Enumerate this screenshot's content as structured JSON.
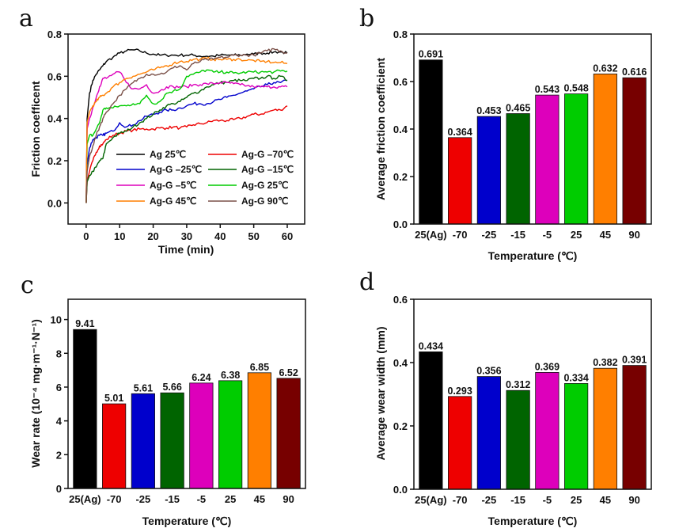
{
  "chart_data": [
    {
      "id": "a",
      "panel_label": "a",
      "type": "line",
      "title": "",
      "xlabel": "Time (min)",
      "ylabel": "Friction coefficent",
      "xlim": [
        -5.4,
        65.2
      ],
      "ylim": [
        -0.1,
        0.8
      ],
      "xticks": [
        0,
        10,
        20,
        30,
        40,
        50,
        60
      ],
      "yticks": [
        0.0,
        0.2,
        0.4,
        0.6,
        0.8
      ],
      "ytick_labels": [
        "0.0",
        "0.2",
        "0.4",
        "0.6",
        "0.8"
      ],
      "grid": false,
      "legend": {
        "placement": "bottom-right",
        "columns": 2
      },
      "x": [
        0,
        0.3,
        1,
        2,
        3,
        4,
        5,
        6,
        8,
        10,
        12,
        14,
        16,
        18,
        20,
        22,
        24,
        26,
        28,
        30,
        32,
        34,
        36,
        38,
        40,
        42,
        44,
        46,
        48,
        50,
        52,
        54,
        56,
        58,
        60
      ],
      "series": [
        {
          "name": "Ag 25℃",
          "color": "#000000",
          "values": [
            0.0,
            0.4,
            0.52,
            0.58,
            0.61,
            0.63,
            0.65,
            0.67,
            0.69,
            0.71,
            0.72,
            0.725,
            0.72,
            0.71,
            0.705,
            0.7,
            0.7,
            0.7,
            0.7,
            0.7,
            0.7,
            0.695,
            0.695,
            0.695,
            0.7,
            0.7,
            0.7,
            0.7,
            0.705,
            0.705,
            0.71,
            0.71,
            0.715,
            0.715,
            0.71
          ]
        },
        {
          "name": "Ag-G –70℃",
          "color": "#EE0000",
          "values": [
            0.0,
            0.1,
            0.15,
            0.2,
            0.24,
            0.27,
            0.28,
            0.3,
            0.32,
            0.33,
            0.34,
            0.345,
            0.35,
            0.35,
            0.35,
            0.355,
            0.355,
            0.36,
            0.355,
            0.36,
            0.37,
            0.375,
            0.38,
            0.39,
            0.39,
            0.39,
            0.395,
            0.4,
            0.41,
            0.42,
            0.42,
            0.43,
            0.44,
            0.44,
            0.46
          ]
        },
        {
          "name": "Ag-G –25℃",
          "color": "#0000CC",
          "values": [
            0.0,
            0.18,
            0.26,
            0.3,
            0.31,
            0.32,
            0.32,
            0.33,
            0.34,
            0.38,
            0.36,
            0.37,
            0.39,
            0.41,
            0.42,
            0.43,
            0.44,
            0.44,
            0.45,
            0.46,
            0.47,
            0.47,
            0.47,
            0.48,
            0.49,
            0.5,
            0.51,
            0.52,
            0.53,
            0.54,
            0.55,
            0.56,
            0.57,
            0.57,
            0.58
          ]
        },
        {
          "name": "Ag-G –15℃",
          "color": "#006400",
          "values": [
            0.0,
            0.1,
            0.13,
            0.15,
            0.17,
            0.2,
            0.21,
            0.28,
            0.31,
            0.33,
            0.34,
            0.36,
            0.38,
            0.4,
            0.42,
            0.44,
            0.46,
            0.47,
            0.48,
            0.5,
            0.52,
            0.53,
            0.55,
            0.56,
            0.57,
            0.57,
            0.58,
            0.58,
            0.58,
            0.59,
            0.59,
            0.6,
            0.59,
            0.6,
            0.58
          ]
        },
        {
          "name": "Ag-G –5℃",
          "color": "#DD00BB",
          "values": [
            0.0,
            0.35,
            0.4,
            0.45,
            0.5,
            0.55,
            0.59,
            0.59,
            0.61,
            0.62,
            0.57,
            0.54,
            0.54,
            0.56,
            0.52,
            0.53,
            0.55,
            0.55,
            0.55,
            0.55,
            0.56,
            0.56,
            0.565,
            0.565,
            0.57,
            0.57,
            0.565,
            0.56,
            0.555,
            0.55,
            0.55,
            0.55,
            0.55,
            0.55,
            0.55
          ]
        },
        {
          "name": "Ag-G 25℃",
          "color": "#00CC00",
          "values": [
            0.0,
            0.28,
            0.32,
            0.32,
            0.35,
            0.38,
            0.44,
            0.45,
            0.45,
            0.46,
            0.46,
            0.47,
            0.47,
            0.51,
            0.47,
            0.48,
            0.52,
            0.53,
            0.54,
            0.6,
            0.61,
            0.62,
            0.63,
            0.62,
            0.62,
            0.62,
            0.615,
            0.615,
            0.62,
            0.62,
            0.62,
            0.62,
            0.62,
            0.625,
            0.625
          ]
        },
        {
          "name": "Ag-G 45℃",
          "color": "#FF7F00",
          "values": [
            0.0,
            0.38,
            0.43,
            0.46,
            0.48,
            0.5,
            0.51,
            0.52,
            0.55,
            0.57,
            0.59,
            0.6,
            0.61,
            0.62,
            0.63,
            0.64,
            0.65,
            0.66,
            0.67,
            0.67,
            0.68,
            0.68,
            0.685,
            0.68,
            0.68,
            0.68,
            0.68,
            0.68,
            0.675,
            0.675,
            0.67,
            0.67,
            0.665,
            0.665,
            0.66
          ]
        },
        {
          "name": "Ag-G 90℃",
          "color": "#7A5048",
          "values": [
            0.0,
            0.15,
            0.22,
            0.27,
            0.32,
            0.36,
            0.4,
            0.43,
            0.47,
            0.51,
            0.54,
            0.57,
            0.59,
            0.61,
            0.61,
            0.61,
            0.62,
            0.64,
            0.65,
            0.63,
            0.66,
            0.67,
            0.68,
            0.68,
            0.69,
            0.69,
            0.7,
            0.7,
            0.7,
            0.7,
            0.71,
            0.72,
            0.73,
            0.72,
            0.71
          ]
        }
      ]
    },
    {
      "id": "b",
      "panel_label": "b",
      "type": "bar",
      "title": "",
      "xlabel": "Temperature (℃)",
      "ylabel": "Average friction coefficient",
      "ylim": [
        0,
        0.8
      ],
      "yticks": [
        0.0,
        0.2,
        0.4,
        0.6,
        0.8
      ],
      "ytick_labels": [
        "0.0",
        "0.2",
        "0.4",
        "0.6",
        "0.8"
      ],
      "grid": false,
      "categories": [
        "25(Ag)",
        "-70",
        "-25",
        "-15",
        "-5",
        "25",
        "45",
        "90"
      ],
      "values": [
        0.691,
        0.364,
        0.453,
        0.465,
        0.543,
        0.548,
        0.632,
        0.616
      ],
      "value_labels": [
        "0.691",
        "0.364",
        "0.453",
        "0.465",
        "0.543",
        "0.548",
        "0.632",
        "0.616"
      ],
      "colors": [
        "#000000",
        "#EE0000",
        "#0000CC",
        "#006400",
        "#DD00BB",
        "#00CC00",
        "#FF7F00",
        "#770000"
      ]
    },
    {
      "id": "c",
      "panel_label": "c",
      "type": "bar",
      "title": "",
      "xlabel": "Temperature (℃)",
      "ylabel": "Wear rate (10⁻⁴ mg·m⁻¹·N⁻¹)",
      "ylim": [
        0,
        11.2
      ],
      "yticks": [
        0,
        2,
        4,
        6,
        8,
        10
      ],
      "ytick_labels": [
        "0",
        "2",
        "4",
        "6",
        "8",
        "10"
      ],
      "grid": false,
      "categories": [
        "25(Ag)",
        "-70",
        "-25",
        "-15",
        "-5",
        "25",
        "45",
        "90"
      ],
      "values": [
        9.41,
        5.01,
        5.61,
        5.66,
        6.24,
        6.38,
        6.85,
        6.52
      ],
      "value_labels": [
        "9.41",
        "5.01",
        "5.61",
        "5.66",
        "6.24",
        "6.38",
        "6.85",
        "6.52"
      ],
      "colors": [
        "#000000",
        "#EE0000",
        "#0000CC",
        "#006400",
        "#DD00BB",
        "#00CC00",
        "#FF7F00",
        "#770000"
      ]
    },
    {
      "id": "d",
      "panel_label": "d",
      "type": "bar",
      "title": "",
      "xlabel": "Temperature (℃)",
      "ylabel": "Average wear width (mm)",
      "ylim": [
        0,
        0.6
      ],
      "yticks": [
        0.0,
        0.2,
        0.4,
        0.6
      ],
      "ytick_labels": [
        "0.0",
        "0.2",
        "0.4",
        "0.6"
      ],
      "grid": false,
      "categories": [
        "25(Ag)",
        "-70",
        "-25",
        "-15",
        "-5",
        "25",
        "45",
        "90"
      ],
      "values": [
        0.434,
        0.293,
        0.356,
        0.312,
        0.369,
        0.334,
        0.382,
        0.391
      ],
      "value_labels": [
        "0.434",
        "0.293",
        "0.356",
        "0.312",
        "0.369",
        "0.334",
        "0.382",
        "0.391"
      ],
      "colors": [
        "#000000",
        "#EE0000",
        "#0000CC",
        "#006400",
        "#DD00BB",
        "#00CC00",
        "#FF7F00",
        "#770000"
      ]
    }
  ]
}
